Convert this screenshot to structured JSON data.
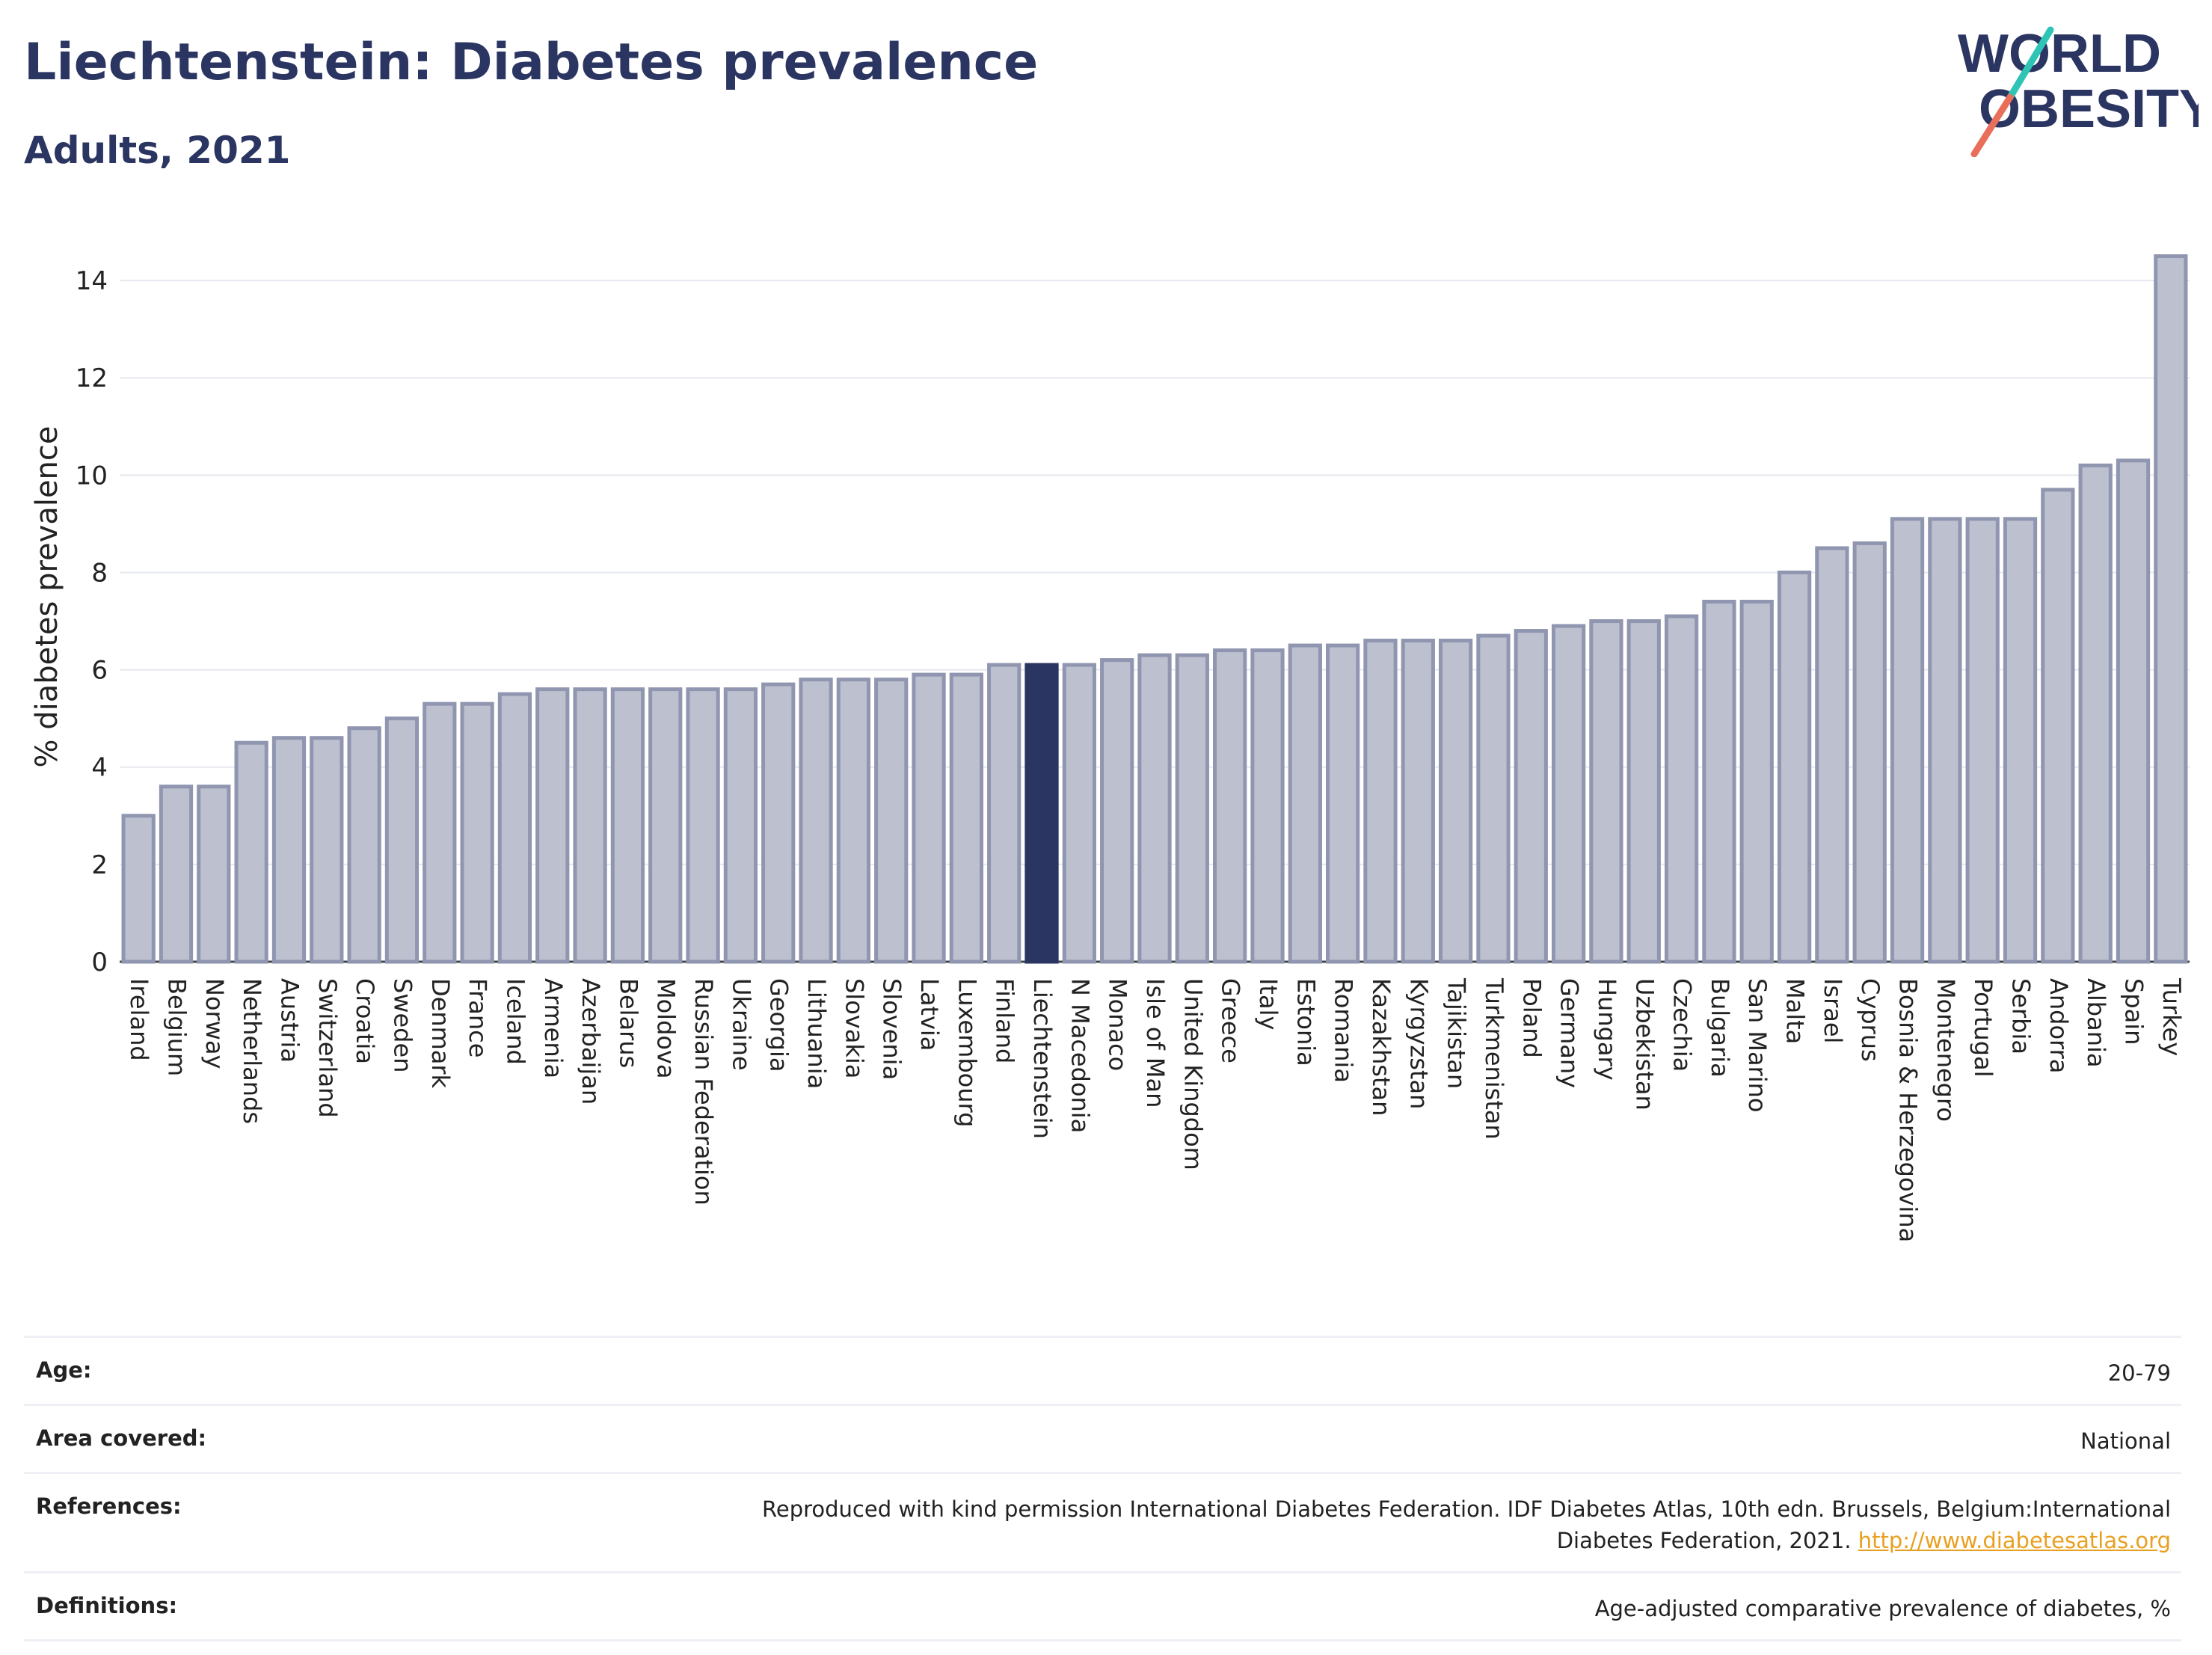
{
  "header": {
    "title": "Liechtenstein: Diabetes prevalence",
    "subtitle": "Adults, 2021"
  },
  "logo": {
    "line1": "WORLD",
    "line2": "OBESITY"
  },
  "colors": {
    "bar_fill": "#bcc0cf",
    "bar_stroke": "#9096b0",
    "highlight": "#2b3561",
    "grid": "#e6e8ef"
  },
  "chart_data": {
    "type": "bar",
    "ylabel": "% diabetes prevalence",
    "xlabel": "",
    "ylim": [
      0,
      15
    ],
    "yticks": [
      0,
      2,
      4,
      6,
      8,
      10,
      12,
      14
    ],
    "grid": true,
    "highlight": "Liechtenstein",
    "categories": [
      "Ireland",
      "Belgium",
      "Norway",
      "Netherlands",
      "Austria",
      "Switzerland",
      "Croatia",
      "Sweden",
      "Denmark",
      "France",
      "Iceland",
      "Armenia",
      "Azerbaijan",
      "Belarus",
      "Moldova",
      "Russian Federation",
      "Ukraine",
      "Georgia",
      "Lithuania",
      "Slovakia",
      "Slovenia",
      "Latvia",
      "Luxembourg",
      "Finland",
      "Liechtenstein",
      "N Macedonia",
      "Monaco",
      "Isle of Man",
      "United Kingdom",
      "Greece",
      "Italy",
      "Estonia",
      "Romania",
      "Kazakhstan",
      "Kyrgyzstan",
      "Tajikistan",
      "Turkmenistan",
      "Poland",
      "Germany",
      "Hungary",
      "Uzbekistan",
      "Czechia",
      "Bulgaria",
      "San Marino",
      "Malta",
      "Israel",
      "Cyprus",
      "Bosnia & Herzegovina",
      "Montenegro",
      "Portugal",
      "Serbia",
      "Andorra",
      "Albania",
      "Spain",
      "Turkey"
    ],
    "values": [
      3.0,
      3.6,
      3.6,
      4.5,
      4.6,
      4.6,
      4.8,
      5.0,
      5.3,
      5.3,
      5.5,
      5.6,
      5.6,
      5.6,
      5.6,
      5.6,
      5.6,
      5.7,
      5.8,
      5.8,
      5.8,
      5.9,
      5.9,
      6.1,
      6.1,
      6.1,
      6.2,
      6.3,
      6.3,
      6.4,
      6.4,
      6.5,
      6.5,
      6.6,
      6.6,
      6.6,
      6.7,
      6.8,
      6.9,
      7.0,
      7.0,
      7.1,
      7.4,
      7.4,
      8.0,
      8.5,
      8.6,
      9.1,
      9.1,
      9.1,
      9.1,
      9.7,
      10.2,
      10.3,
      14.5
    ]
  },
  "info": [
    {
      "key": "Age:",
      "value": "20-79"
    },
    {
      "key": "Area covered:",
      "value": "National"
    },
    {
      "key": "References:",
      "value": "Reproduced with kind permission International Diabetes Federation.  IDF Diabetes Atlas, 10th edn. Brussels, Belgium:International Diabetes Federation, 2021. ",
      "link": "http://www.diabetesatlas.org"
    },
    {
      "key": "Definitions:",
      "value": "Age-adjusted comparative prevalence of diabetes, %"
    }
  ]
}
